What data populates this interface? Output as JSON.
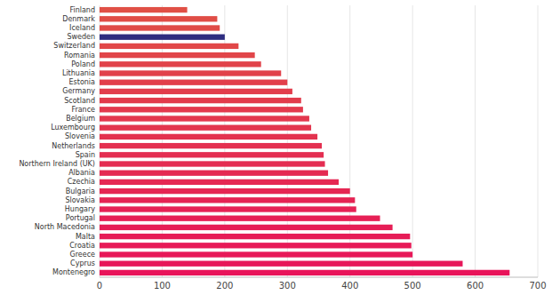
{
  "chart_data": {
    "type": "bar",
    "orientation": "horizontal",
    "categories": [
      "Finland",
      "Denmark",
      "Iceland",
      "Sweden",
      "Switzerland",
      "Romania",
      "Poland",
      "Lithuania",
      "Estonia",
      "Germany",
      "Scotland",
      "France",
      "Belgium",
      "Luxembourg",
      "Slovenia",
      "Netherlands",
      "Spain",
      "Northern Ireland (UK)",
      "Albania",
      "Czechia",
      "Bulgaria",
      "Slovakia",
      "Hungary",
      "Portugal",
      "North Macedonia",
      "Malta",
      "Croatia",
      "Greece",
      "Cyprus",
      "Montenegro"
    ],
    "values": [
      140,
      188,
      192,
      200,
      222,
      248,
      258,
      290,
      300,
      308,
      322,
      325,
      335,
      338,
      348,
      355,
      358,
      360,
      365,
      382,
      400,
      408,
      410,
      448,
      468,
      496,
      498,
      500,
      580,
      655
    ],
    "colors": [
      "#e05046",
      "#e04d46",
      "#e04b47",
      "#2e2d80",
      "#e14748",
      "#e14549",
      "#e1434a",
      "#e1414a",
      "#e23f4b",
      "#e23d4c",
      "#e23b4c",
      "#e3394d",
      "#e3374e",
      "#e3354e",
      "#e3334f",
      "#e43050",
      "#e42e51",
      "#e42c51",
      "#e42a52",
      "#e52853",
      "#e52653",
      "#e52454",
      "#e62255",
      "#e62055",
      "#e61e56",
      "#e61c57",
      "#e71a57",
      "#e71858",
      "#e71659",
      "#e8145a"
    ],
    "xlim": [
      0,
      700
    ],
    "xticks": [
      0,
      100,
      200,
      300,
      400,
      500,
      600,
      700
    ],
    "grid": true
  }
}
